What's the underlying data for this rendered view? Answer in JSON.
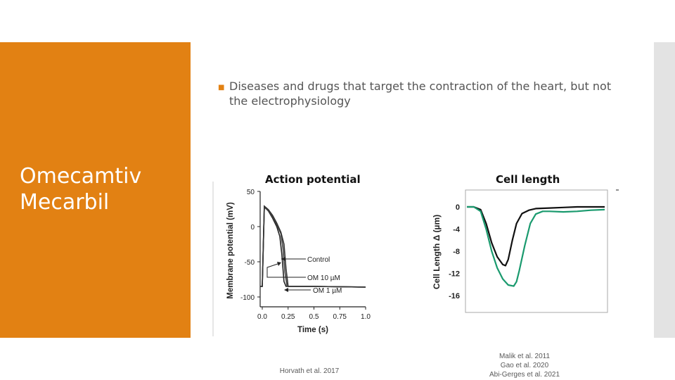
{
  "slide": {
    "title_line1": "Omecamtiv",
    "title_line2": "Mecarbil",
    "bullet": "Diseases and drugs that target the contraction of the heart, but not the electrophysiology"
  },
  "colors": {
    "accent": "#e28113",
    "sidebar": "#e3e3e3",
    "om_green": "#1a9a6e"
  },
  "chart_data": [
    {
      "type": "line",
      "title": "Action potential",
      "xlabel": "Time (s)",
      "ylabel": "Membrane potential (mV)",
      "xlim": [
        0,
        1.0
      ],
      "ylim": [
        -100,
        50
      ],
      "xticks": [
        "0.0",
        "0.25",
        "0.5",
        "0.75",
        "1.0"
      ],
      "yticks": [
        "50",
        "0",
        "-50",
        "-100"
      ],
      "annotations": [
        "Control",
        "OM 10 µM",
        "OM 1 µM"
      ],
      "series": [
        {
          "name": "Control",
          "x": [
            -0.02,
            0.0,
            0.02,
            0.06,
            0.1,
            0.14,
            0.17,
            0.19,
            0.21,
            0.23,
            0.3,
            0.5,
            1.0
          ],
          "y": [
            -85,
            -85,
            28,
            22,
            12,
            0,
            -14,
            -40,
            -78,
            -85,
            -85,
            -85,
            -86
          ]
        },
        {
          "name": "OM 1 µM",
          "x": [
            -0.02,
            0.0,
            0.02,
            0.06,
            0.1,
            0.14,
            0.18,
            0.2,
            0.22,
            0.24,
            0.3,
            0.5,
            1.0
          ],
          "y": [
            -85,
            -85,
            27,
            23,
            14,
            3,
            -10,
            -30,
            -65,
            -85,
            -85,
            -85,
            -86
          ]
        },
        {
          "name": "OM 10 µM",
          "x": [
            -0.02,
            0.0,
            0.02,
            0.06,
            0.1,
            0.14,
            0.18,
            0.21,
            0.23,
            0.25,
            0.3,
            0.5,
            1.0
          ],
          "y": [
            -85,
            -85,
            29,
            24,
            16,
            5,
            -8,
            -25,
            -60,
            -85,
            -85,
            -85,
            -86
          ]
        }
      ]
    },
    {
      "type": "line",
      "title": "Cell length",
      "xlabel": "",
      "ylabel": "Cell Length Δ (µm)",
      "ylim": [
        -16,
        2
      ],
      "yticks": [
        "0",
        "-4",
        "-8",
        "-12",
        "-16"
      ],
      "series": [
        {
          "color": "#111111",
          "x": [
            0,
            5,
            10,
            14,
            18,
            22,
            26,
            28,
            30,
            33,
            36,
            40,
            45,
            50,
            60,
            70,
            80,
            90,
            100
          ],
          "y": [
            0,
            0,
            -0.5,
            -3,
            -6.5,
            -9,
            -10.4,
            -10.6,
            -9.5,
            -6,
            -3,
            -1.2,
            -0.6,
            -0.3,
            -0.2,
            -0.1,
            0,
            0,
            0
          ]
        },
        {
          "color": "#1a9a6e",
          "x": [
            0,
            5,
            10,
            14,
            18,
            22,
            26,
            30,
            34,
            36,
            38,
            42,
            46,
            50,
            55,
            60,
            70,
            80,
            90,
            100
          ],
          "y": [
            0,
            0,
            -0.8,
            -4,
            -8,
            -11,
            -13,
            -14.1,
            -14.3,
            -13.5,
            -11.5,
            -7,
            -3,
            -1.3,
            -0.8,
            -0.8,
            -0.9,
            -0.8,
            -0.6,
            -0.5
          ]
        }
      ]
    }
  ],
  "references": {
    "left": "Horvath et al. 2017",
    "right_line1": "Malik et al. 2011",
    "right_line2": "Gao et al. 2020",
    "right_line3": "Abi-Gerges et al. 2021"
  }
}
